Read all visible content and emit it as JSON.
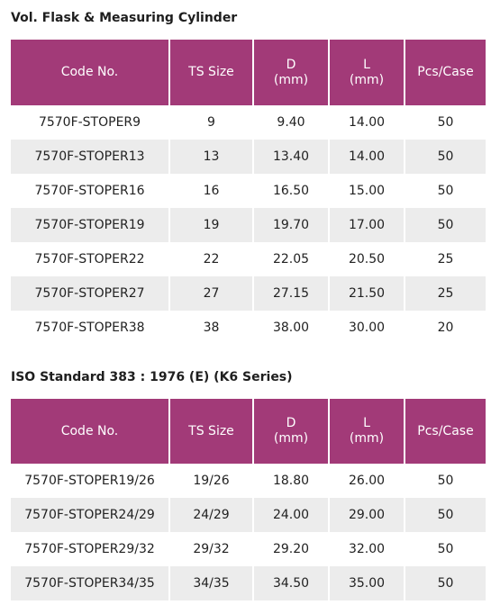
{
  "sections": [
    {
      "title": "Vol. Flask & Measuring Cylinder",
      "headers": {
        "code": "Code No.",
        "ts": "TS Size",
        "d1": "D",
        "d2": "(mm)",
        "l1": "L",
        "l2": "(mm)",
        "pcs": "Pcs/Case"
      },
      "rows": [
        [
          "7570F-STOPER9",
          "9",
          "9.40",
          "14.00",
          "50"
        ],
        [
          "7570F-STOPER13",
          "13",
          "13.40",
          "14.00",
          "50"
        ],
        [
          "7570F-STOPER16",
          "16",
          "16.50",
          "15.00",
          "50"
        ],
        [
          "7570F-STOPER19",
          "19",
          "19.70",
          "17.00",
          "50"
        ],
        [
          "7570F-STOPER22",
          "22",
          "22.05",
          "20.50",
          "25"
        ],
        [
          "7570F-STOPER27",
          "27",
          "27.15",
          "21.50",
          "25"
        ],
        [
          "7570F-STOPER38",
          "38",
          "38.00",
          "30.00",
          "20"
        ]
      ]
    },
    {
      "title": "ISO Standard 383 : 1976 (E) (K6 Series)",
      "headers": {
        "code": "Code No.",
        "ts": "TS Size",
        "d1": "D",
        "d2": "(mm)",
        "l1": "L",
        "l2": "(mm)",
        "pcs": "Pcs/Case"
      },
      "rows": [
        [
          "7570F-STOPER19/26",
          "19/26",
          "18.80",
          "26.00",
          "50"
        ],
        [
          "7570F-STOPER24/29",
          "24/29",
          "24.00",
          "29.00",
          "50"
        ],
        [
          "7570F-STOPER29/32",
          "29/32",
          "29.20",
          "32.00",
          "50"
        ],
        [
          "7570F-STOPER34/35",
          "34/35",
          "34.50",
          "35.00",
          "50"
        ]
      ]
    }
  ],
  "colors": {
    "header_bg": "#a23a78",
    "header_text": "#ffffff",
    "row_alt_bg": "#ececec"
  }
}
